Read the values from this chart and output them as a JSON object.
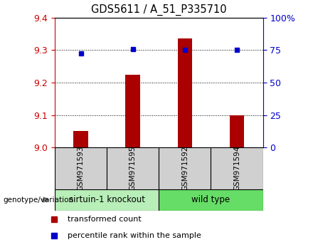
{
  "title": "GDS5611 / A_51_P335710",
  "samples": [
    "GSM971593",
    "GSM971595",
    "GSM971592",
    "GSM971594"
  ],
  "transformed_count": [
    9.05,
    9.225,
    9.335,
    9.1
  ],
  "percentile_rank": [
    72.5,
    76,
    75,
    75
  ],
  "ylim_left": [
    9.0,
    9.4
  ],
  "ylim_right": [
    0,
    100
  ],
  "yticks_left": [
    9.0,
    9.1,
    9.2,
    9.3,
    9.4
  ],
  "yticks_right": [
    0,
    25,
    50,
    75,
    100
  ],
  "ytick_labels_right": [
    "0",
    "25",
    "50",
    "75",
    "100%"
  ],
  "groups": [
    {
      "label": "sirtuin-1 knockout",
      "samples": [
        0,
        1
      ],
      "color": "#b8eeb8"
    },
    {
      "label": "wild type",
      "samples": [
        2,
        3
      ],
      "color": "#66dd66"
    }
  ],
  "sample_box_color": "#d0d0d0",
  "bar_color": "#aa0000",
  "dot_color": "#0000cc",
  "bar_width": 0.28,
  "legend_items": [
    {
      "label": "transformed count",
      "color": "#aa0000"
    },
    {
      "label": "percentile rank within the sample",
      "color": "#0000cc"
    }
  ],
  "genotype_label": "genotype/variation",
  "left_axis_color": "#cc0000",
  "right_axis_color": "#0000cc"
}
